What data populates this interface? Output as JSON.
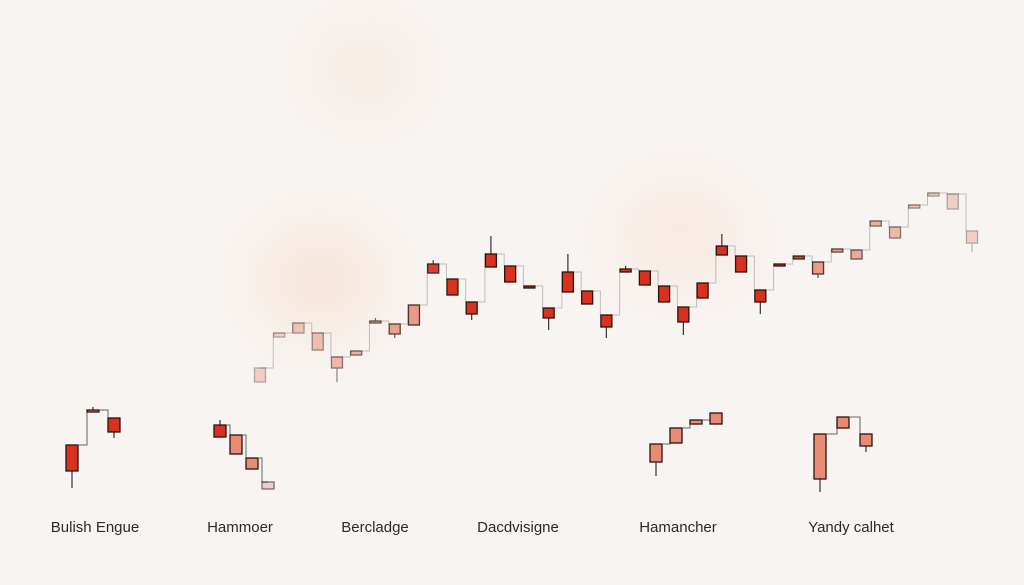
{
  "chart_data": {
    "type": "candlestick",
    "title": "",
    "xlabel": "",
    "ylabel": "",
    "grid": false,
    "colors": {
      "body": "#d8311f",
      "body_light": "#e98a72",
      "wick": "#333333",
      "step_line": "#999999"
    },
    "main_series": [
      {
        "o": 18,
        "c": 32,
        "h": 32,
        "l": 18
      },
      {
        "o": 63,
        "c": 67,
        "h": 67,
        "l": 63
      },
      {
        "o": 67,
        "c": 77,
        "h": 77,
        "l": 67
      },
      {
        "o": 50,
        "c": 67,
        "h": 67,
        "l": 50
      },
      {
        "o": 32,
        "c": 43,
        "h": 43,
        "l": 18
      },
      {
        "o": 45,
        "c": 49,
        "h": 49,
        "l": 45
      },
      {
        "o": 77,
        "c": 79,
        "h": 82,
        "l": 77
      },
      {
        "o": 66,
        "c": 76,
        "h": 76,
        "l": 62
      },
      {
        "o": 75,
        "c": 95,
        "h": 95,
        "l": 75
      },
      {
        "o": 127,
        "c": 136,
        "h": 140,
        "l": 127
      },
      {
        "o": 105,
        "c": 121,
        "h": 121,
        "l": 105
      },
      {
        "o": 86,
        "c": 98,
        "h": 98,
        "l": 80
      },
      {
        "o": 133,
        "c": 146,
        "h": 164,
        "l": 133
      },
      {
        "o": 118,
        "c": 134,
        "h": 134,
        "l": 118
      },
      {
        "o": 112,
        "c": 114,
        "h": 114,
        "l": 112
      },
      {
        "o": 82,
        "c": 92,
        "h": 92,
        "l": 70
      },
      {
        "o": 108,
        "c": 128,
        "h": 146,
        "l": 108
      },
      {
        "o": 96,
        "c": 109,
        "h": 109,
        "l": 96
      },
      {
        "o": 73,
        "c": 85,
        "h": 85,
        "l": 62
      },
      {
        "o": 128,
        "c": 131,
        "h": 134,
        "l": 128
      },
      {
        "o": 115,
        "c": 129,
        "h": 129,
        "l": 115
      },
      {
        "o": 98,
        "c": 114,
        "h": 114,
        "l": 98
      },
      {
        "o": 78,
        "c": 93,
        "h": 93,
        "l": 65
      },
      {
        "o": 102,
        "c": 117,
        "h": 117,
        "l": 102
      },
      {
        "o": 145,
        "c": 154,
        "h": 166,
        "l": 145
      },
      {
        "o": 128,
        "c": 144,
        "h": 144,
        "l": 128
      },
      {
        "o": 98,
        "c": 110,
        "h": 110,
        "l": 86
      },
      {
        "o": 135,
        "c": 136,
        "h": 136,
        "l": 135
      },
      {
        "o": 141,
        "c": 144,
        "h": 144,
        "l": 141
      },
      {
        "o": 126,
        "c": 138,
        "h": 138,
        "l": 122
      },
      {
        "o": 148,
        "c": 151,
        "h": 151,
        "l": 148
      },
      {
        "o": 141,
        "c": 150,
        "h": 150,
        "l": 141
      },
      {
        "o": 174,
        "c": 179,
        "h": 179,
        "l": 174
      },
      {
        "o": 162,
        "c": 173,
        "h": 173,
        "l": 162
      },
      {
        "o": 192,
        "c": 195,
        "h": 195,
        "l": 192
      },
      {
        "o": 204,
        "c": 207,
        "h": 207,
        "l": 204
      },
      {
        "o": 191,
        "c": 206,
        "h": 206,
        "l": 191
      },
      {
        "o": 157,
        "c": 169,
        "h": 169,
        "l": 148
      }
    ],
    "patterns": [
      {
        "label": "Bulish Engue",
        "candles": [
          {
            "o": 29,
            "c": 55,
            "h": 55,
            "l": 12,
            "dark": true
          },
          {
            "o": 88,
            "c": 90,
            "h": 93,
            "l": 88,
            "dark": false
          },
          {
            "o": 68,
            "c": 82,
            "h": 82,
            "l": 62,
            "dark": true
          }
        ]
      },
      {
        "label": "Hammoer",
        "candles": [
          {
            "o": 63,
            "c": 75,
            "h": 80,
            "l": 63,
            "dark": true
          },
          {
            "o": 46,
            "c": 65,
            "h": 65,
            "l": 46,
            "dark": false
          },
          {
            "o": 31,
            "c": 42,
            "h": 42,
            "l": 31,
            "dark": false
          },
          {
            "o": 11,
            "c": 18,
            "h": 18,
            "l": 11,
            "faded": true
          }
        ]
      },
      {
        "label": "Bercladge",
        "candles": []
      },
      {
        "label": "Dacdvisigne",
        "candles": []
      },
      {
        "label": "Hamancher",
        "candles": [
          {
            "o": 38,
            "c": 56,
            "h": 56,
            "l": 24
          },
          {
            "o": 57,
            "c": 72,
            "h": 72,
            "l": 57
          },
          {
            "o": 76,
            "c": 80,
            "h": 80,
            "l": 76
          },
          {
            "o": 76,
            "c": 87,
            "h": 87,
            "l": 76
          }
        ]
      },
      {
        "label": "Yandy calhet",
        "candles": [
          {
            "o": 21,
            "c": 66,
            "h": 66,
            "l": 8
          },
          {
            "o": 72,
            "c": 83,
            "h": 83,
            "l": 72
          },
          {
            "o": 54,
            "c": 66,
            "h": 66,
            "l": 48
          }
        ]
      }
    ]
  }
}
